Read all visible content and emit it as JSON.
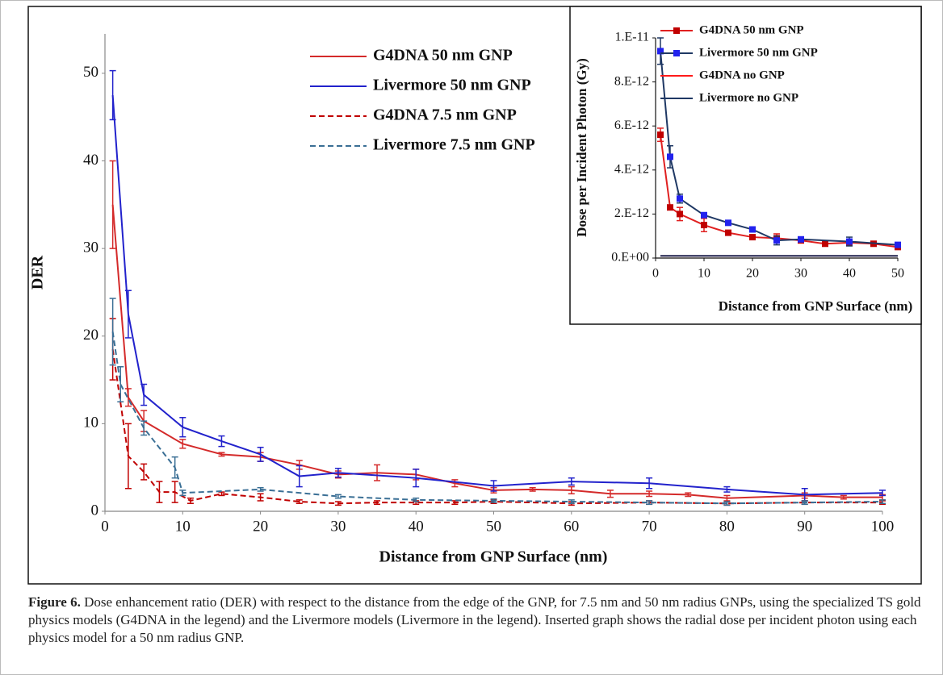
{
  "chart_data": [
    {
      "type": "line",
      "xlabel": "Distance from GNP Surface (nm)",
      "ylabel": "DER",
      "xlim": [
        0,
        100
      ],
      "xticks": [
        0,
        10,
        20,
        30,
        40,
        50,
        60,
        70,
        80,
        90,
        100
      ],
      "ylim": [
        0,
        54.5
      ],
      "yticks": [
        0,
        10,
        20,
        30,
        40,
        50
      ],
      "series": [
        {
          "name": "G4DNA 50 nm GNP",
          "color": "#d42a2a",
          "style": "solid",
          "x": [
            1,
            3,
            5,
            10,
            15,
            20,
            25,
            30,
            35,
            40,
            45,
            50,
            55,
            60,
            65,
            70,
            75,
            80,
            90,
            95,
            100
          ],
          "values": [
            35,
            13,
            10.3,
            7.7,
            6.5,
            6.2,
            5.3,
            4.2,
            4.4,
            4.2,
            3.2,
            2.4,
            2.5,
            2.4,
            2.0,
            2.0,
            1.9,
            1.5,
            1.8,
            1.6,
            1.6
          ],
          "errors": [
            5,
            1,
            1.2,
            0.5,
            0.2,
            0.5,
            0.5,
            0.4,
            0.9,
            0.6,
            0.4,
            0.3,
            0.2,
            0.4,
            0.4,
            0.3,
            0.2,
            0.3,
            0.3,
            0.2,
            0.3
          ]
        },
        {
          "name": "Livermore 50 nm GNP",
          "color": "#2222cc",
          "style": "solid",
          "x": [
            1,
            3,
            5,
            10,
            15,
            20,
            25,
            30,
            40,
            50,
            60,
            70,
            80,
            90,
            100
          ],
          "values": [
            47.5,
            22.5,
            13.3,
            9.6,
            8.0,
            6.5,
            4.0,
            4.4,
            3.8,
            2.9,
            3.4,
            3.2,
            2.5,
            1.9,
            2.1
          ],
          "errors": [
            2.8,
            2.7,
            1.2,
            1.1,
            0.6,
            0.8,
            1.2,
            0.5,
            1.0,
            0.6,
            0.4,
            0.6,
            0.3,
            0.7,
            0.3
          ]
        },
        {
          "name": "G4DNA 7.5 nm GNP",
          "color": "#c00000",
          "style": "dashed",
          "x": [
            1,
            3,
            5,
            7,
            9,
            11,
            15,
            20,
            25,
            30,
            35,
            40,
            45,
            50,
            60,
            70,
            80,
            90,
            100
          ],
          "values": [
            18.5,
            6.3,
            4.5,
            2.2,
            2.2,
            1.2,
            2.0,
            1.6,
            1.1,
            0.9,
            1.0,
            1.0,
            1.0,
            1.1,
            0.9,
            1.0,
            0.9,
            1.0,
            1.0
          ],
          "errors": [
            3.5,
            3.7,
            0.9,
            1.2,
            1.2,
            0.3,
            0.2,
            0.4,
            0.2,
            0.2,
            0.2,
            0.2,
            0.2,
            0.2,
            0.2,
            0.2,
            0.2,
            0.2,
            0.2
          ]
        },
        {
          "name": "Livermore 7.5 nm GNP",
          "color": "#3a6f95",
          "style": "dashed",
          "x": [
            1,
            2,
            5,
            9,
            10,
            20,
            30,
            40,
            50,
            60,
            70,
            80,
            90,
            100
          ],
          "values": [
            20.5,
            14.5,
            9.5,
            5.0,
            2.1,
            2.5,
            1.7,
            1.3,
            1.2,
            1.1,
            1.0,
            0.9,
            1.0,
            1.1
          ],
          "errors": [
            3.8,
            2,
            0.8,
            1.2,
            0.3,
            0.2,
            0.2,
            0.2,
            0.2,
            0.2,
            0.2,
            0.2,
            0.2,
            0.2
          ]
        }
      ]
    },
    {
      "type": "line",
      "xlabel": "Distance from GNP Surface (nm)",
      "ylabel": "Dose per Incident Photon (Gy)",
      "xlim": [
        0,
        50
      ],
      "xticks": [
        0,
        10,
        20,
        30,
        40,
        50
      ],
      "ylim": [
        0,
        1e-11
      ],
      "yticks": [
        {
          "value": 0,
          "label": "0.E+00"
        },
        {
          "value": 2e-12,
          "label": "2.E-12"
        },
        {
          "value": 4e-12,
          "label": "4.E-12"
        },
        {
          "value": 6e-12,
          "label": "6.E-12"
        },
        {
          "value": 8e-12,
          "label": "8.E-12"
        },
        {
          "value": 1e-11,
          "label": "1.E-11"
        }
      ],
      "series": [
        {
          "name": "G4DNA 50 nm GNP",
          "color": "#e02020",
          "marker": "square",
          "marker_color": "#c00000",
          "x": [
            1,
            3,
            5,
            10,
            15,
            20,
            25,
            30,
            35,
            40,
            45,
            50
          ],
          "values": [
            5.6e-12,
            2.3e-12,
            2e-12,
            1.5e-12,
            1.15e-12,
            9.5e-13,
            9e-13,
            8e-13,
            6.5e-13,
            7e-13,
            6.5e-13,
            5e-13
          ],
          "errors": [
            3e-13,
            1e-13,
            3e-13,
            3e-13,
            1e-13,
            1e-13,
            2e-13,
            1e-13,
            1e-13,
            1e-13,
            1e-13,
            1e-13
          ]
        },
        {
          "name": "Livermore 50 nm GNP",
          "color": "#1f3864",
          "marker": "square",
          "marker_color": "#2222ee",
          "x": [
            1,
            3,
            5,
            10,
            15,
            20,
            25,
            30,
            40,
            50
          ],
          "values": [
            9.4e-12,
            4.6e-12,
            2.7e-12,
            1.95e-12,
            1.6e-12,
            1.3e-12,
            8e-13,
            8.5e-13,
            7.5e-13,
            6e-13
          ],
          "errors": [
            6e-13,
            5e-13,
            2e-13,
            1e-13,
            1e-13,
            1e-13,
            2e-13,
            1e-13,
            2e-13,
            1e-13
          ]
        },
        {
          "name": "G4DNA no GNP",
          "color": "#ff1a1a",
          "x": [
            1,
            50
          ],
          "values": [
            1e-13,
            1e-13
          ]
        },
        {
          "name": "Livermore no GNP",
          "color": "#1f3864",
          "x": [
            1,
            50
          ],
          "values": [
            1e-13,
            1e-13
          ]
        }
      ]
    }
  ],
  "caption": {
    "label": "Figure 6.",
    "text": "Dose enhancement ratio (DER) with respect to the distance from the edge of the GNP, for 7.5 nm and 50 nm radius GNPs, using the specialized TS gold physics models (G4DNA in the legend) and the Livermore models (Livermore in the legend). Inserted graph shows the radial dose per incident photon using each physics model for a 50 nm radius GNP."
  }
}
